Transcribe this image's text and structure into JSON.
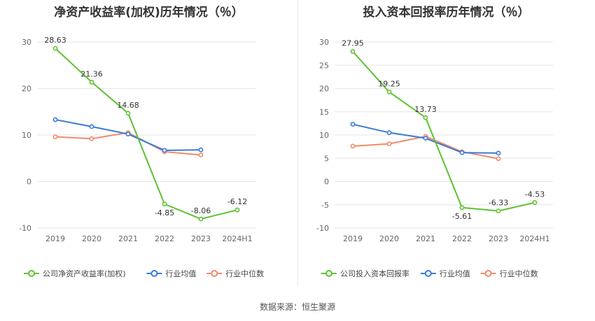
{
  "source_label": "数据来源：恒生聚源",
  "chart_data": [
    {
      "type": "line",
      "title": "净资产收益率(加权)历年情况（％）",
      "categories": [
        "2019",
        "2020",
        "2021",
        "2022",
        "2023",
        "2024H1"
      ],
      "ylim": [
        -10,
        30
      ],
      "yticks": [
        -10,
        0,
        10,
        20,
        30
      ],
      "grid": true,
      "legend_position": "bottom",
      "series": [
        {
          "name": "公司净资产收益率(加权)",
          "color": "#5ec232",
          "values": [
            28.63,
            21.36,
            14.68,
            -4.85,
            -8.06,
            -6.12
          ],
          "labels": [
            "28.63",
            "21.36",
            "14.68",
            "-4.85",
            "-8.06",
            "-6.12"
          ]
        },
        {
          "name": "行业均值",
          "color": "#3a7bd5",
          "values": [
            13.3,
            11.8,
            10.2,
            6.7,
            6.8,
            null
          ],
          "labels": []
        },
        {
          "name": "行业中位数",
          "color": "#f08a6a",
          "values": [
            9.6,
            9.2,
            10.5,
            6.4,
            5.7,
            null
          ],
          "labels": []
        }
      ]
    },
    {
      "type": "line",
      "title": "投入资本回报率历年情况（％）",
      "categories": [
        "2019",
        "2020",
        "2021",
        "2022",
        "2023",
        "2024H1"
      ],
      "ylim": [
        -10,
        30
      ],
      "yticks": [
        -10,
        -5,
        0,
        5,
        10,
        15,
        20,
        25,
        30
      ],
      "grid": true,
      "legend_position": "bottom",
      "series": [
        {
          "name": "公司投入资本回报率",
          "color": "#5ec232",
          "values": [
            27.95,
            19.25,
            13.73,
            -5.61,
            -6.33,
            -4.53
          ],
          "labels": [
            "27.95",
            "19.25",
            "13.73",
            "-5.61",
            "-6.33",
            "-4.53"
          ]
        },
        {
          "name": "行业均值",
          "color": "#3a7bd5",
          "values": [
            12.3,
            10.5,
            9.3,
            6.2,
            6.1,
            null
          ],
          "labels": []
        },
        {
          "name": "行业中位数",
          "color": "#f08a6a",
          "values": [
            7.6,
            8.1,
            9.7,
            6.4,
            4.9,
            null
          ],
          "labels": []
        }
      ]
    }
  ]
}
